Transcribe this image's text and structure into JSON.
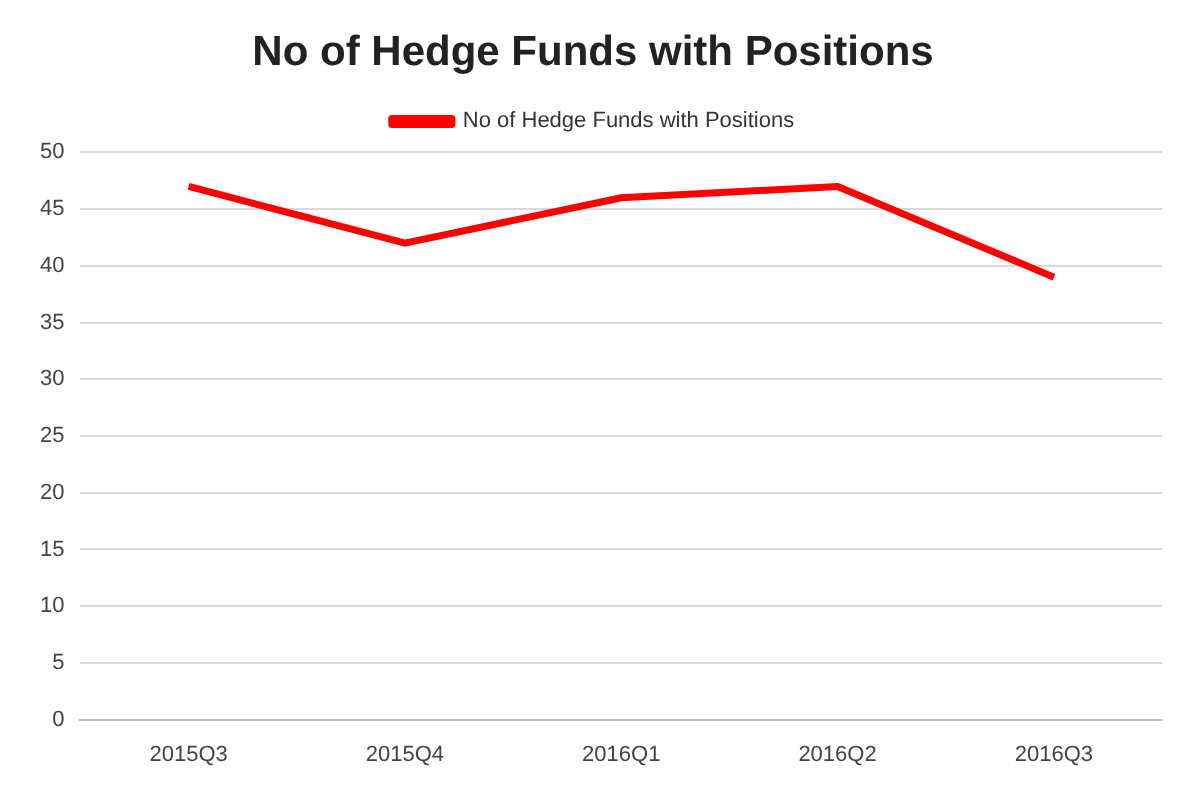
{
  "chart_data": {
    "type": "line",
    "title": "No of Hedge Funds with Positions",
    "categories": [
      "2015Q3",
      "2015Q4",
      "2016Q1",
      "2016Q2",
      "2016Q3"
    ],
    "series": [
      {
        "name": "No of Hedge Funds with Positions",
        "color": "#ff0000",
        "values": [
          47,
          42,
          46,
          47,
          39
        ]
      }
    ],
    "ylim": [
      0,
      50
    ],
    "yticks": [
      0,
      5,
      10,
      15,
      20,
      25,
      30,
      35,
      40,
      45,
      50
    ],
    "grid": "y",
    "legend": "top",
    "marker": "none",
    "line_style": "solid"
  }
}
